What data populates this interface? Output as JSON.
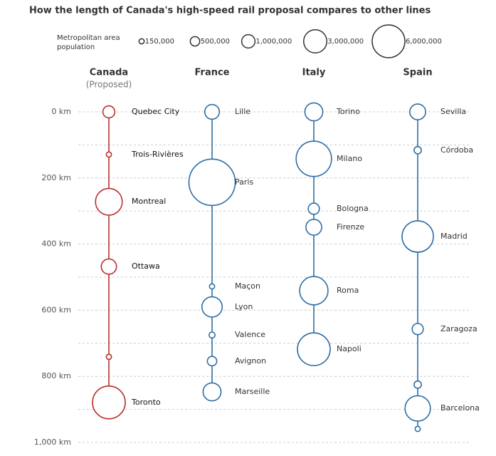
{
  "chart_data": {
    "type": "line",
    "title": "How the length of Canada's high-speed rail proposal compares to other lines",
    "size_legend": {
      "title": "Metropolitan area population",
      "values": [
        150000,
        500000,
        1000000,
        3000000,
        6000000
      ],
      "labels": [
        "150,000",
        "500,000",
        "1,000,000",
        "3,000,000",
        "6,000,000"
      ]
    },
    "ylim": [
      0,
      1000
    ],
    "yticks": [
      {
        "value": 0,
        "label": "0 km"
      },
      {
        "value": 200,
        "label": "200 km"
      },
      {
        "value": 400,
        "label": "400 km"
      },
      {
        "value": 600,
        "label": "600 km"
      },
      {
        "value": 800,
        "label": "800 km"
      },
      {
        "value": 1000,
        "label": "1,000 km"
      }
    ],
    "minor_yticks": [
      100,
      300,
      500,
      700,
      900
    ],
    "grid": true,
    "series": [
      {
        "name": "Canada",
        "note": "(Proposed)",
        "color": "#b8312f",
        "labels": [
          "Quebec City",
          "Trois-Rivières",
          "Montreal",
          "Ottawa",
          null,
          "Toronto"
        ],
        "values": [
          0,
          129,
          272,
          468,
          741,
          879
        ],
        "sizes": [
          800000,
          150000,
          4000000,
          1300000,
          150000,
          6000000
        ]
      },
      {
        "name": "France",
        "color": "#2f6ea5",
        "labels": [
          "Lille",
          "Paris",
          "Maçon",
          "Lyon",
          "Valence",
          "Avignon",
          "Marseille"
        ],
        "values": [
          0,
          213,
          528,
          590,
          675,
          754,
          847
        ],
        "sizes": [
          1200000,
          12000000,
          150000,
          2300000,
          200000,
          500000,
          1800000
        ]
      },
      {
        "name": "Italy",
        "color": "#2f6ea5",
        "labels": [
          "Torino",
          "Milano",
          "Bologna",
          "Firenze",
          "Roma",
          "Napoli"
        ],
        "values": [
          0,
          142,
          293,
          349,
          541,
          718
        ],
        "sizes": [
          1800000,
          7000000,
          700000,
          1400000,
          4500000,
          6000000
        ]
      },
      {
        "name": "Spain",
        "color": "#2f6ea5",
        "labels": [
          "Sevilla",
          "Córdoba",
          "Madrid",
          "Zaragoza",
          null,
          "Barcelona",
          null
        ],
        "values": [
          0,
          116,
          377,
          657,
          825,
          897,
          959
        ],
        "sizes": [
          1400000,
          300000,
          5500000,
          700000,
          300000,
          3600000,
          150000
        ]
      }
    ]
  }
}
